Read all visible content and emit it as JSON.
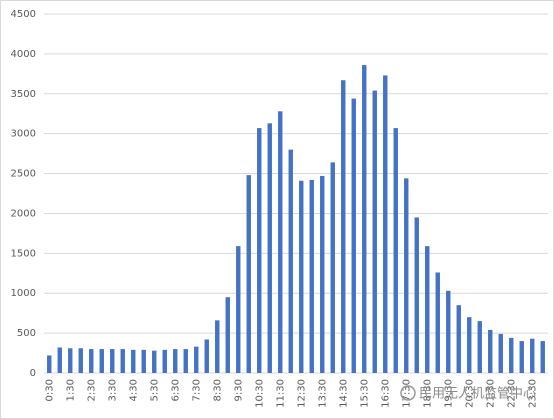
{
  "chart_data": {
    "type": "bar",
    "categories": [
      "0:30",
      null,
      "1:30",
      null,
      "2:30",
      null,
      "3:30",
      null,
      "4:30",
      null,
      "5:30",
      null,
      "6:30",
      null,
      "7:30",
      null,
      "8:30",
      null,
      "9:30",
      null,
      "10:30",
      null,
      "11:30",
      null,
      "12:30",
      null,
      "13:30",
      null,
      "14:30",
      null,
      "15:30",
      null,
      "16:30",
      null,
      "17:30",
      null,
      "18:30",
      null,
      "19:30",
      null,
      "20:30",
      null,
      "21:30",
      null,
      "22:30",
      null,
      "23:30",
      null
    ],
    "values": [
      220,
      320,
      310,
      310,
      300,
      300,
      300,
      300,
      290,
      290,
      280,
      290,
      300,
      300,
      330,
      420,
      660,
      950,
      1590,
      2480,
      3070,
      3130,
      3280,
      2800,
      2410,
      2420,
      2470,
      2640,
      3670,
      3440,
      3860,
      3540,
      3730,
      3070,
      2440,
      1950,
      1590,
      1260,
      1030,
      850,
      700,
      650,
      540,
      490,
      440,
      400,
      430,
      400
    ],
    "color": "#4472c4",
    "ylim": [
      0,
      4500
    ],
    "yticks": [
      0,
      500,
      1000,
      1500,
      2000,
      2500,
      3000,
      3500,
      4000,
      4500
    ],
    "grid": true,
    "watermark": "民用无人机监管中心"
  }
}
